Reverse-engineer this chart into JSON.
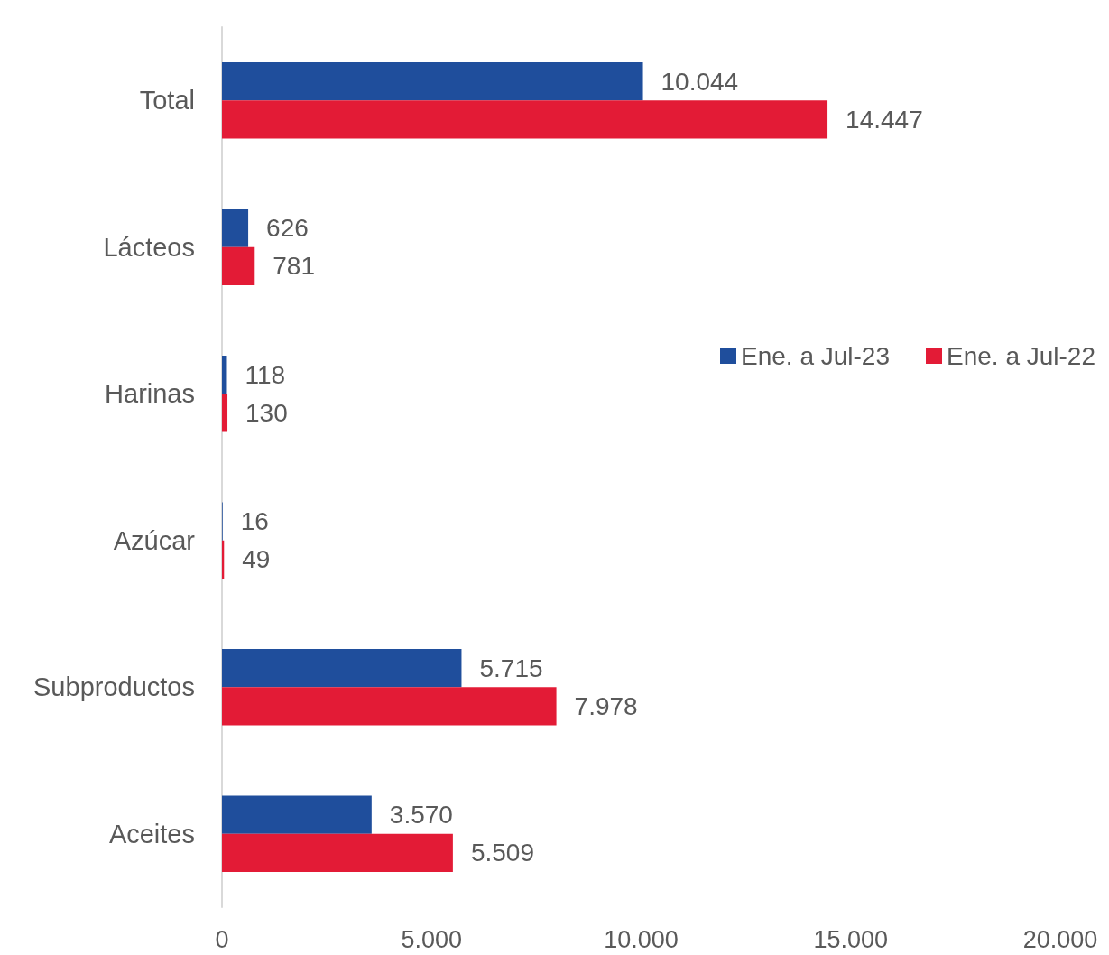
{
  "chart_data": {
    "type": "bar",
    "orientation": "horizontal",
    "categories": [
      "Total",
      "Lácteos",
      "Harinas",
      "Azúcar",
      "Subproductos",
      "Aceites"
    ],
    "series": [
      {
        "name": "Ene. a Jul-23",
        "color": "#1f4e9c",
        "values": [
          10044,
          626,
          118,
          16,
          5715,
          3570
        ],
        "value_labels": [
          "10.044",
          "626",
          "118",
          "16",
          "5.715",
          "3.570"
        ]
      },
      {
        "name": "Ene. a Jul-22",
        "color": "#e31b36",
        "values": [
          14447,
          781,
          130,
          49,
          7978,
          5509
        ],
        "value_labels": [
          "14.447",
          "781",
          "130",
          "49",
          "7.978",
          "5.509"
        ]
      }
    ],
    "xlim": [
      0,
      20000
    ],
    "xticks": [
      0,
      {
        "value": 5000,
        "label": "5.000"
      },
      {
        "value": 10000,
        "label": "10.000"
      },
      {
        "value": 15000,
        "label": "15.000"
      },
      {
        "value": 20000,
        "label": "20.000"
      }
    ],
    "grid": false,
    "legend": "right"
  }
}
